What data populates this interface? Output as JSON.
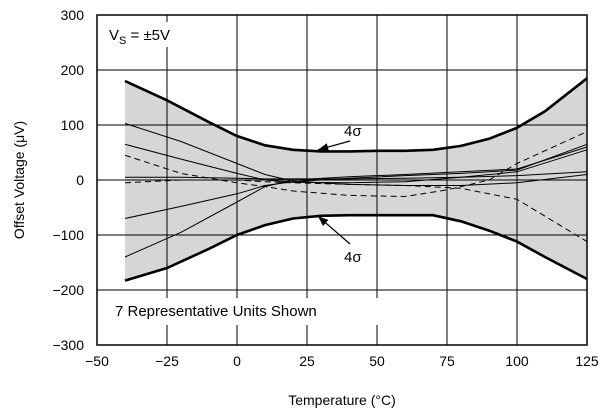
{
  "chart_data": {
    "type": "line",
    "xlabel": "Temperature (°C)",
    "ylabel": "Offset Voltage (μV)",
    "xlim": [
      -50,
      125
    ],
    "ylim": [
      -300,
      300
    ],
    "xticks": [
      -50,
      -25,
      0,
      25,
      50,
      75,
      100,
      125
    ],
    "yticks": [
      -300,
      -200,
      -100,
      0,
      100,
      200,
      300
    ],
    "xtick_labels": [
      "−50",
      "−25",
      "0",
      "25",
      "50",
      "75",
      "100",
      "125"
    ],
    "ytick_labels": [
      "−300",
      "−200",
      "−100",
      "0",
      "100",
      "200",
      "300"
    ],
    "grid": true,
    "annotations": {
      "supply": "V",
      "supply_sub": "S",
      "supply_rest": " = ±5V",
      "units_note": "7 Representative Units Shown",
      "upper_label": "4σ",
      "lower_label": "4σ"
    },
    "band": {
      "x": [
        -40,
        -25,
        -10,
        0,
        10,
        20,
        30,
        40,
        50,
        60,
        70,
        80,
        90,
        100,
        110,
        125
      ],
      "upper": [
        180,
        145,
        105,
        80,
        63,
        55,
        52,
        52,
        53,
        53,
        55,
        62,
        75,
        95,
        125,
        185
      ],
      "lower": [
        -183,
        -160,
        -125,
        -100,
        -82,
        -70,
        -65,
        -64,
        -64,
        -64,
        -64,
        -75,
        -92,
        -112,
        -140,
        -180
      ]
    },
    "series": [
      {
        "style": "solid",
        "x": [
          -40,
          -20,
          0,
          10,
          20,
          40,
          60,
          80,
          100,
          125
        ],
        "y": [
          103,
          70,
          30,
          10,
          -2,
          -8,
          -10,
          -10,
          -5,
          10
        ]
      },
      {
        "style": "solid",
        "x": [
          -40,
          -20,
          0,
          10,
          20,
          40,
          60,
          80,
          100,
          125
        ],
        "y": [
          65,
          38,
          12,
          0,
          -4,
          -5,
          -3,
          5,
          15,
          55
        ]
      },
      {
        "style": "solid",
        "x": [
          -40,
          -20,
          0,
          10,
          20,
          40,
          60,
          80,
          100,
          125
        ],
        "y": [
          5,
          5,
          3,
          2,
          2,
          2,
          3,
          5,
          8,
          15
        ]
      },
      {
        "style": "solid",
        "x": [
          -40,
          -20,
          0,
          10,
          20,
          40,
          60,
          80,
          100,
          125
        ],
        "y": [
          -70,
          -48,
          -25,
          -10,
          -3,
          3,
          8,
          12,
          18,
          65
        ]
      },
      {
        "style": "solid",
        "x": [
          -40,
          -20,
          0,
          10,
          20,
          40,
          60,
          80,
          100,
          125
        ],
        "y": [
          -140,
          -95,
          -40,
          -12,
          0,
          6,
          10,
          15,
          20,
          60
        ]
      },
      {
        "style": "dashed",
        "x": [
          -40,
          -20,
          0,
          10,
          20,
          40,
          60,
          75,
          90,
          100,
          125
        ],
        "y": [
          45,
          12,
          -5,
          -12,
          -20,
          -28,
          -30,
          -18,
          0,
          30,
          88
        ]
      },
      {
        "style": "dashed",
        "x": [
          -40,
          -20,
          0,
          10,
          20,
          40,
          60,
          80,
          100,
          125
        ],
        "y": [
          -5,
          0,
          0,
          -3,
          -5,
          -8,
          -10,
          -15,
          -35,
          -112
        ]
      }
    ]
  }
}
